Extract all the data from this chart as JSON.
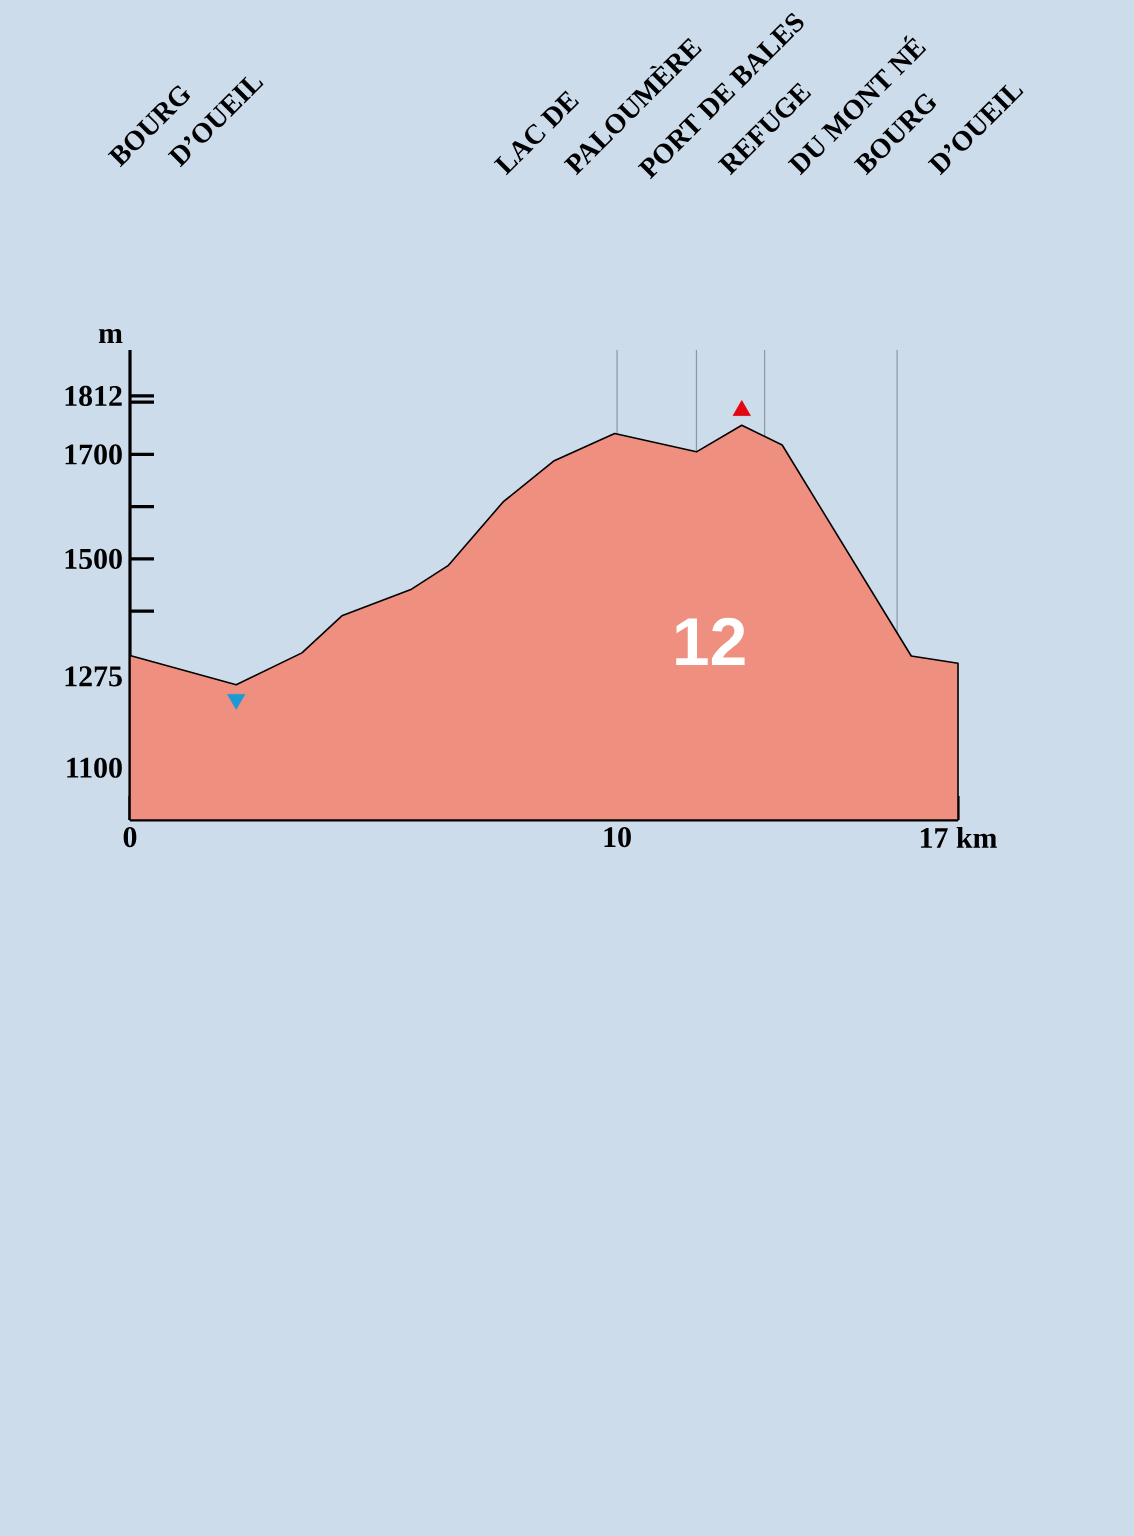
{
  "chart_data": {
    "type": "area",
    "ylabel": "m",
    "x": [
      0,
      2.18,
      3.53,
      4.35,
      5.78,
      6.53,
      7.66,
      8.71,
      9.95,
      11.63,
      12.56,
      13.39,
      16.04,
      17
    ],
    "series": [
      {
        "color": "#ef8f80",
        "values": [
          1315,
          1259,
          1320,
          1391,
          1442,
          1487,
          1609,
          1688,
          1740,
          1705,
          1756,
          1718,
          1314,
          1300
        ]
      },
      {
        "type": "scatter",
        "color": "#e30613",
        "marker": "triangle",
        "x": [
          12.56
        ],
        "values": [
          1784
        ]
      },
      {
        "type": "scatter",
        "color": "#1d9ad6",
        "marker": "triangle",
        "x": [
          2.18
        ],
        "values": [
          1231
        ]
      }
    ],
    "xlim": [
      0,
      17
    ],
    "ylim": [
      1000,
      1900
    ],
    "xticks": [
      0,
      10,
      {
        "value": 17,
        "label": "17 km"
      }
    ],
    "yticks": [
      1100,
      {
        "value": 1200,
        "label": null
      },
      1275,
      {
        "value": 1400,
        "label": null
      },
      1500,
      {
        "value": 1600,
        "label": null
      },
      1700,
      {
        "value": 1800,
        "label": null
      },
      1812
    ],
    "ref_lines": [
      {
        "axis": "x",
        "value": 10,
        "color": "#8a96a3"
      },
      {
        "axis": "x",
        "value": 11.63,
        "color": "#8a96a3"
      },
      {
        "axis": "x",
        "value": 13.03,
        "color": "#8a96a3"
      },
      {
        "axis": "x",
        "value": 15.75,
        "color": "#8a96a3"
      }
    ],
    "annotations": [
      "BOURG",
      "D’OUEIL",
      "LAC DE",
      "PALOUMÈRE",
      "PORT DE BALES",
      "REFUGE",
      "DU MONT NÉ",
      "BOURG",
      "D’OUEIL",
      "12"
    ]
  }
}
